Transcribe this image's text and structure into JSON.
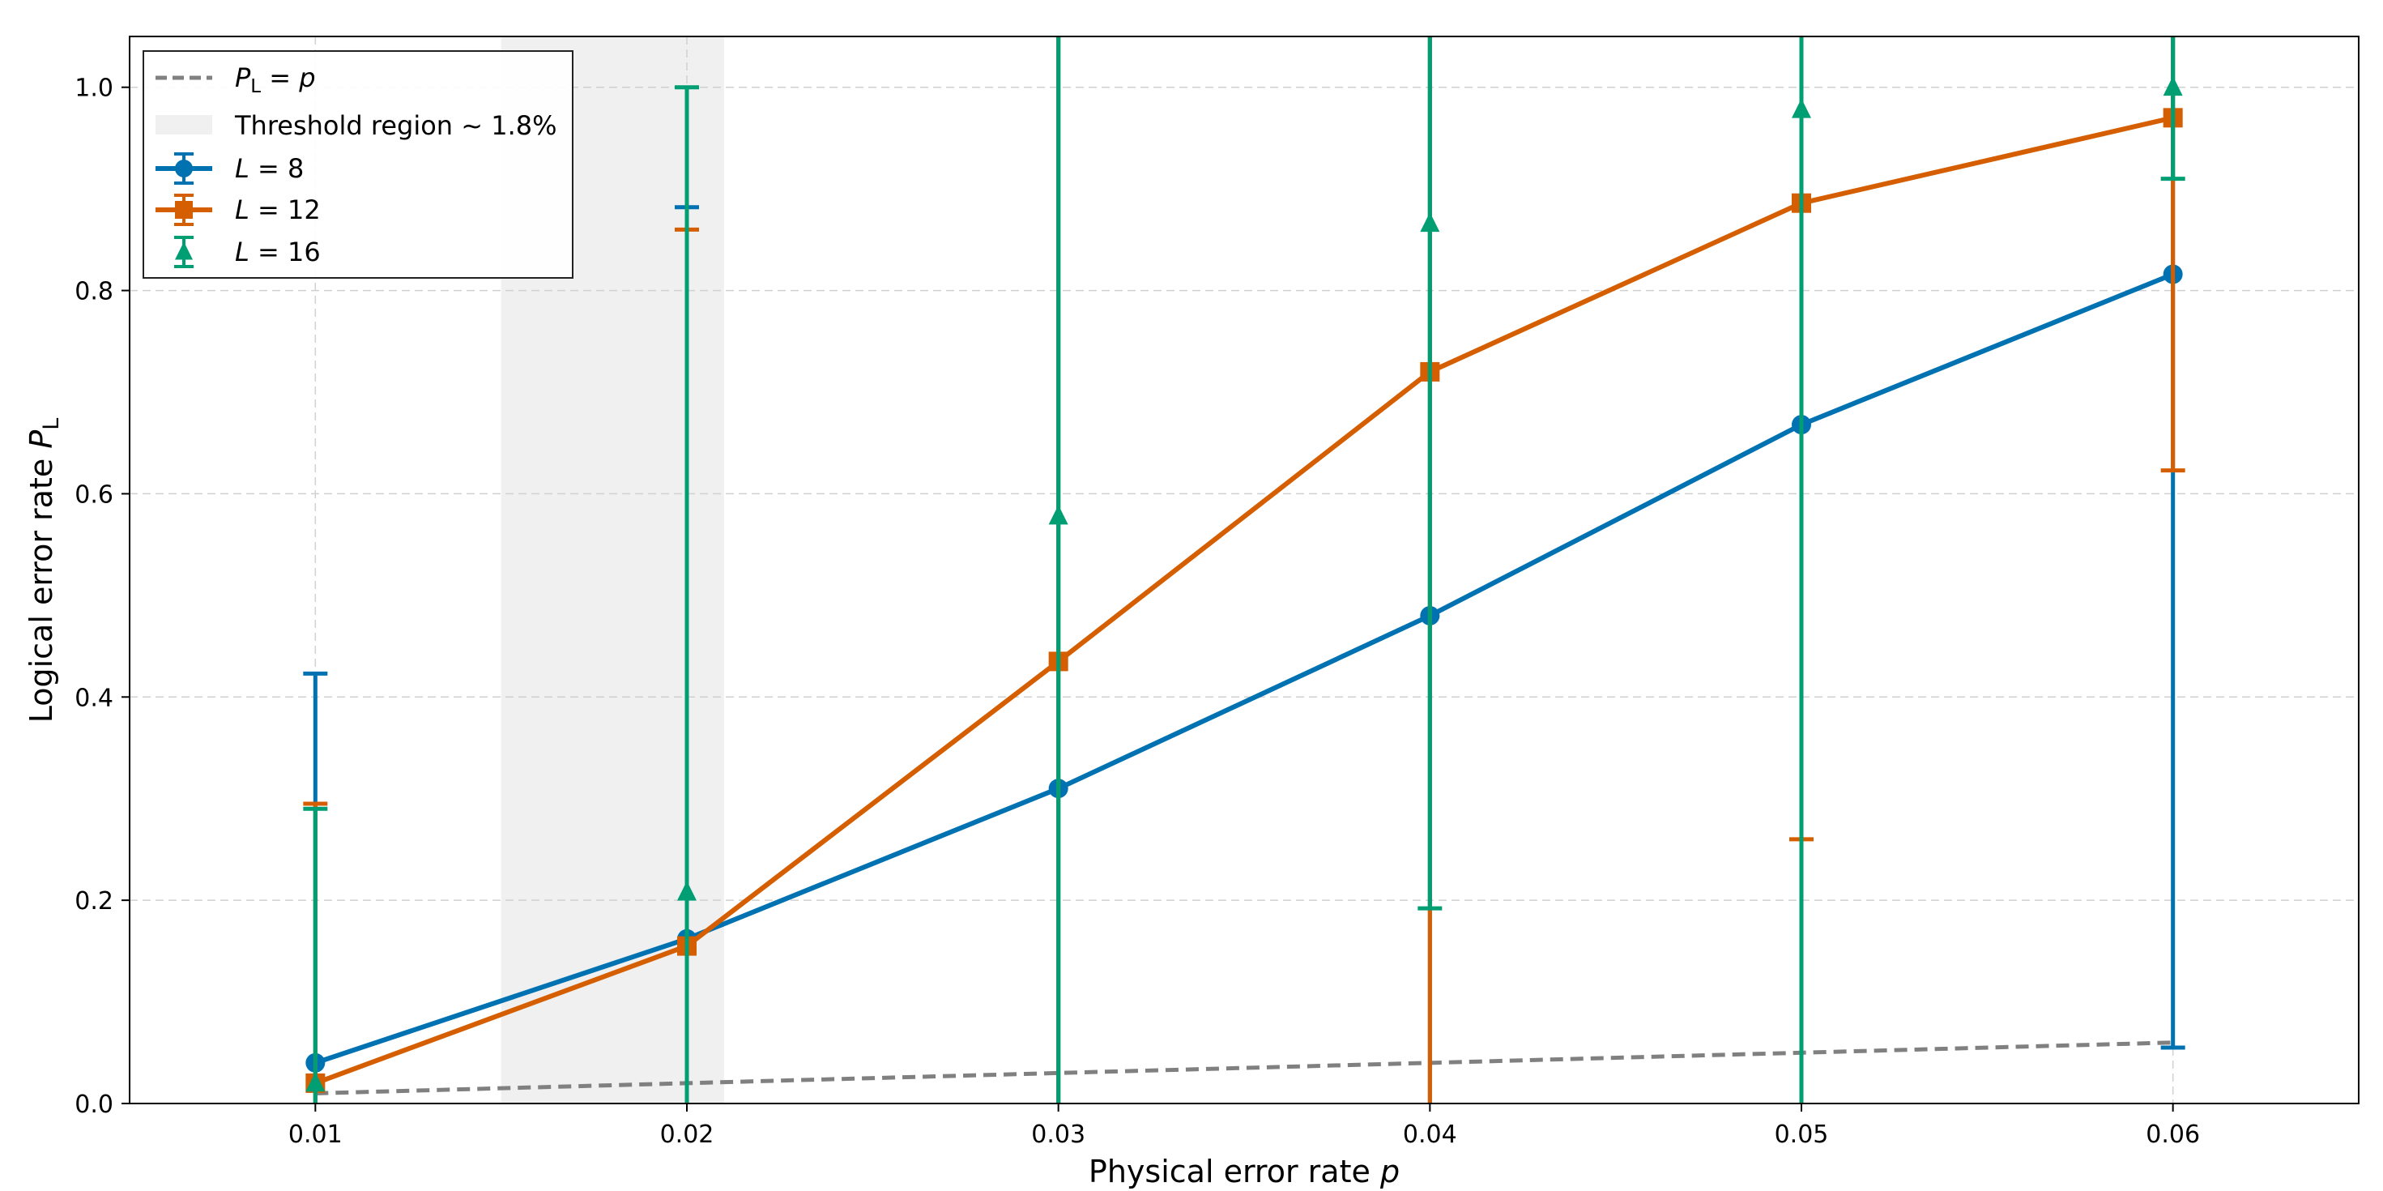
{
  "chart_data": {
    "type": "line",
    "xlabel": "Physical error rate",
    "xlabel_var": "p",
    "ylabel": "Logical error rate",
    "ylabel_var": "P",
    "ylabel_sub": "L",
    "xlim": [
      0.005,
      0.065
    ],
    "ylim": [
      0.0,
      1.05
    ],
    "xticks": [
      0.01,
      0.02,
      0.03,
      0.04,
      0.05,
      0.06
    ],
    "xtick_labels": [
      "0.01",
      "0.02",
      "0.03",
      "0.04",
      "0.05",
      "0.06"
    ],
    "yticks": [
      0.0,
      0.2,
      0.4,
      0.6,
      0.8,
      1.0
    ],
    "ytick_labels": [
      "0.0",
      "0.2",
      "0.4",
      "0.6",
      "0.8",
      "1.0"
    ],
    "grid": true,
    "legend_position": "top-left",
    "threshold_region": {
      "x_range": [
        0.015,
        0.021
      ],
      "label": "Threshold region",
      "value_text": "1.8%",
      "color": "#f0f0f0"
    },
    "reference_line": {
      "label_lhs": "P",
      "label_sub": "L",
      "label_rhs": "p",
      "x": [
        0.01,
        0.02,
        0.03,
        0.04,
        0.05,
        0.06
      ],
      "y": [
        0.01,
        0.02,
        0.03,
        0.04,
        0.05,
        0.06
      ],
      "color": "#808080",
      "style": "dashed"
    },
    "series": [
      {
        "name": "8",
        "var": "L",
        "marker": "circle",
        "color": "#0072b2",
        "x": [
          0.01,
          0.02,
          0.03,
          0.04,
          0.05,
          0.06
        ],
        "y": [
          0.04,
          0.162,
          0.31,
          0.48,
          0.668,
          0.816
        ],
        "err_low": [
          0.0,
          0.0,
          0.0,
          0.0,
          0.0,
          0.055
        ],
        "err_high": [
          0.423,
          0.882,
          1.05,
          1.05,
          1.05,
          1.05
        ]
      },
      {
        "name": "12",
        "var": "L",
        "marker": "square",
        "color": "#d55e00",
        "x": [
          0.01,
          0.02,
          0.03,
          0.04,
          0.05,
          0.06
        ],
        "y": [
          0.02,
          0.155,
          0.435,
          0.72,
          0.886,
          0.97
        ],
        "err_low": [
          0.0,
          0.0,
          0.0,
          0.0,
          0.26,
          0.623
        ],
        "err_high": [
          0.295,
          0.86,
          1.05,
          1.05,
          1.05,
          1.05
        ]
      },
      {
        "name": "16",
        "var": "L",
        "marker": "triangle",
        "color": "#009e73",
        "x": [
          0.01,
          0.02,
          0.03,
          0.04,
          0.05,
          0.06
        ],
        "y": [
          0.02,
          0.208,
          0.578,
          0.866,
          0.978,
          1.0
        ],
        "err_low": [
          0.0,
          0.0,
          0.0,
          0.192,
          0.0,
          0.91
        ],
        "err_high": [
          0.29,
          1.0,
          1.05,
          1.05,
          1.05,
          1.05
        ]
      }
    ]
  }
}
